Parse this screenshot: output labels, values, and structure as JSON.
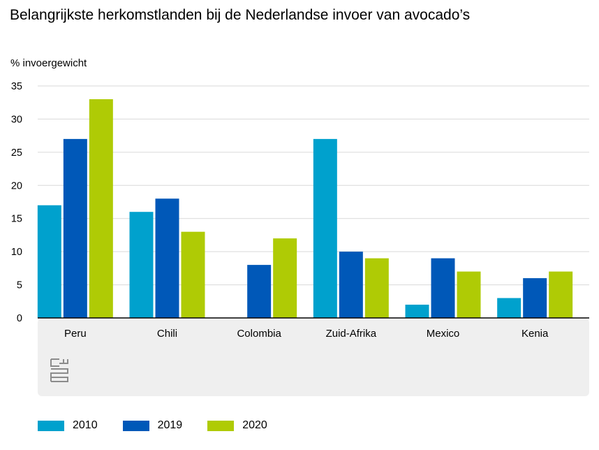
{
  "chart_data": {
    "type": "bar",
    "title": "Belangrijkste herkomstlanden bij de Nederlandse invoer van avocado’s",
    "ylabel": "% invoergewicht",
    "xlabel": "",
    "ylim": [
      0,
      35
    ],
    "yticks": [
      0,
      5,
      10,
      15,
      20,
      25,
      30,
      35
    ],
    "categories": [
      "Peru",
      "Chili",
      "Colombia",
      "Zuid-Afrika",
      "Mexico",
      "Kenia"
    ],
    "series": [
      {
        "name": "2010",
        "color": "#00a1cd",
        "values": [
          17,
          16,
          null,
          27,
          2,
          3
        ]
      },
      {
        "name": "2019",
        "color": "#0058b8",
        "values": [
          27,
          18,
          8,
          10,
          9,
          6
        ]
      },
      {
        "name": "2020",
        "color": "#afcb05",
        "values": [
          33,
          13,
          12,
          9,
          7,
          7
        ]
      }
    ],
    "grid": true,
    "legend_position": "bottom-left",
    "logo": "cbs-logo"
  }
}
